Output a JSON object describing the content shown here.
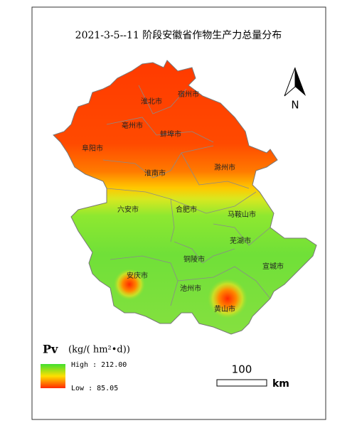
{
  "title": "2021-3-5--11 阶段安徽省作物生产力总量分布",
  "cities": [
    "淮北市",
    "宿州市",
    "亳州市",
    "蚌埠市",
    "阜阳市",
    "淮南市",
    "滁州市",
    "六安市",
    "合肥市",
    "马鞍山市",
    "芜湖市",
    "铜陵市",
    "宣城市",
    "安庆市",
    "池州市",
    "黄山市"
  ],
  "legend": {
    "title": "Pv",
    "unit": "(kg/( hm²•d))",
    "high": "High : 212.00",
    "low": "Low : 85.05"
  },
  "scale_bar": {
    "distance": "100",
    "unit": "km"
  },
  "north_arrow": "N"
}
